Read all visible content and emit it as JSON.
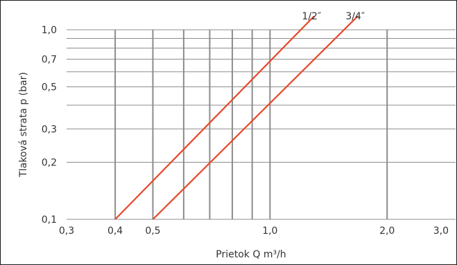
{
  "chart_data": {
    "type": "line",
    "xscale": "log",
    "yscale": "log",
    "xlim": [
      0.3,
      3.0
    ],
    "ylim": [
      0.1,
      1.0
    ],
    "xlabel": "Prietok Q m³/h",
    "ylabel": "Tlaková strata p (bar)",
    "x_ticks": [
      {
        "value": 0.3,
        "label": "0,3"
      },
      {
        "value": 0.4,
        "label": "0,4"
      },
      {
        "value": 0.5,
        "label": "0,5"
      },
      {
        "value": 1.0,
        "label": "1,0"
      },
      {
        "value": 2.0,
        "label": "2,0"
      },
      {
        "value": 3.0,
        "label": "3,0"
      }
    ],
    "x_gridlines": [
      0.4,
      0.5,
      0.6,
      0.7,
      0.8,
      0.9,
      1.0,
      2.0
    ],
    "y_ticks": [
      {
        "value": 0.1,
        "label": "0,1"
      },
      {
        "value": 0.2,
        "label": "0,2"
      },
      {
        "value": 0.3,
        "label": "0,3"
      },
      {
        "value": 0.5,
        "label": "0,5"
      },
      {
        "value": 0.7,
        "label": "0,7"
      },
      {
        "value": 1.0,
        "label": "1,0"
      }
    ],
    "y_gridlines": [
      0.1,
      0.2,
      0.3,
      0.4,
      0.5,
      0.6,
      0.7,
      0.8,
      0.9,
      1.0
    ],
    "grid": true,
    "line_color": "#e8462a",
    "grid_color": "#8c8c8c",
    "series": [
      {
        "name": "1/2″",
        "points": [
          [
            0.4,
            0.1
          ],
          [
            1.2,
            1.0
          ]
        ]
      },
      {
        "name": "3/4″",
        "points": [
          [
            0.5,
            0.1
          ],
          [
            1.55,
            1.0
          ]
        ]
      }
    ]
  }
}
